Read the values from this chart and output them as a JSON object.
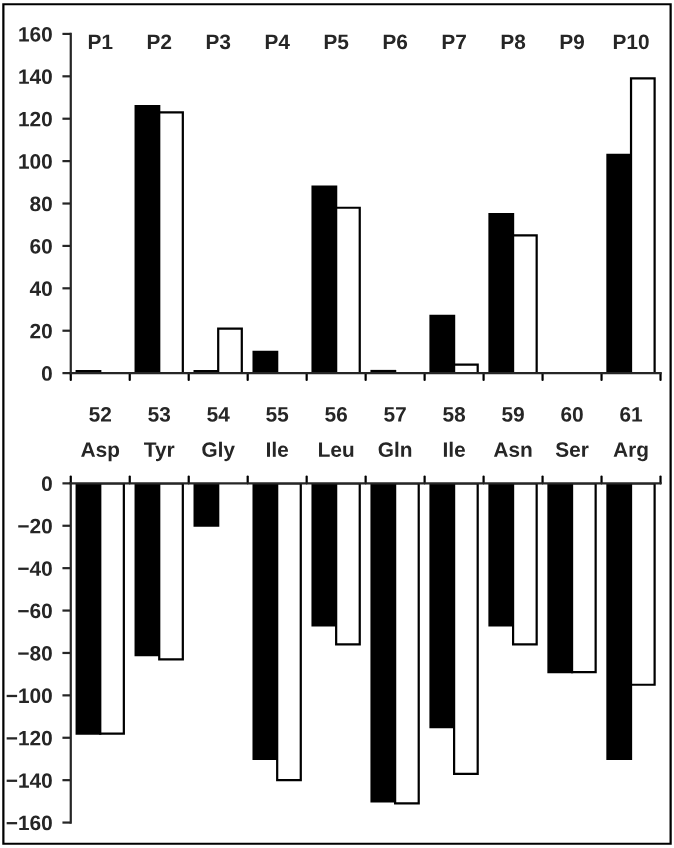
{
  "chart_data": [
    {
      "type": "bar",
      "categories": [
        "52",
        "53",
        "54",
        "55",
        "56",
        "57",
        "58",
        "59",
        "60",
        "61"
      ],
      "series": [
        {
          "color": "#000000",
          "values": [
            1,
            126,
            1,
            10,
            88,
            1,
            27,
            75,
            null,
            103
          ]
        },
        {
          "color": "#ffffff",
          "values": [
            null,
            123,
            21,
            null,
            78,
            null,
            4,
            65,
            null,
            139
          ]
        }
      ],
      "ylim": [
        0,
        160
      ],
      "yticks": [
        0,
        20,
        40,
        60,
        80,
        100,
        120,
        140,
        160
      ],
      "grid": false,
      "legend": false,
      "annotations": [
        "P1",
        "P2",
        "P3",
        "P4",
        "P5",
        "P6",
        "P7",
        "P8",
        "P9",
        "P10"
      ]
    },
    {
      "type": "bar",
      "categories": [
        "Asp",
        "Tyr",
        "Gly",
        "Ile",
        "Leu",
        "Gln",
        "Ile",
        "Asn",
        "Ser",
        "Arg"
      ],
      "series": [
        {
          "color": "#000000",
          "values": [
            -118,
            -81,
            -20,
            -130,
            -67,
            -150,
            -115,
            -67,
            -89,
            -130
          ]
        },
        {
          "color": "#ffffff",
          "values": [
            -118,
            -83,
            null,
            -140,
            -76,
            -151,
            -137,
            -76,
            -89,
            -95
          ]
        }
      ],
      "ylim": [
        -160,
        0
      ],
      "yticks": [
        -160,
        -140,
        -120,
        -100,
        -80,
        -60,
        -40,
        -20,
        0
      ],
      "grid": false,
      "legend": false
    }
  ]
}
